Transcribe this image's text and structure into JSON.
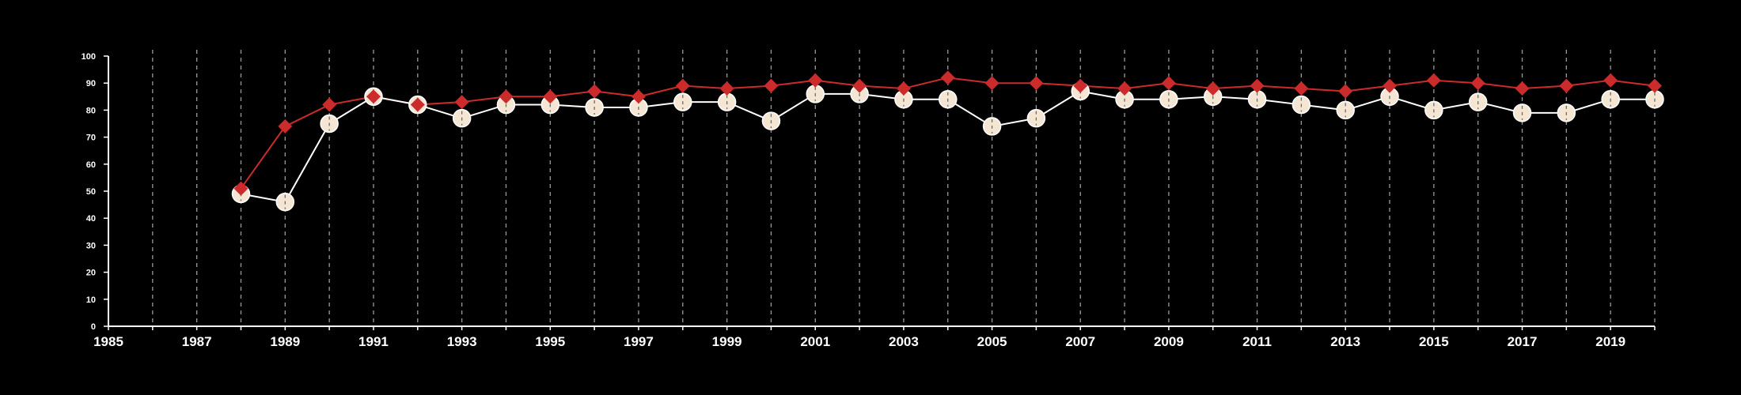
{
  "chart_data": {
    "type": "line",
    "title": "",
    "xlabel": "",
    "ylabel": "",
    "xlim": [
      1985,
      2020
    ],
    "ylim": [
      0,
      100
    ],
    "x_ticks": [
      1985,
      1987,
      1989,
      1991,
      1993,
      1995,
      1997,
      1999,
      2001,
      2003,
      2005,
      2007,
      2009,
      2011,
      2013,
      2015,
      2017,
      2019
    ],
    "y_ticks": [
      0,
      10,
      20,
      30,
      40,
      50,
      60,
      70,
      80,
      90,
      100
    ],
    "vertical_grid": "dashed at every year from 1986 to 2020",
    "legend": "none",
    "x": [
      1988,
      1989,
      1990,
      1991,
      1992,
      1993,
      1994,
      1995,
      1996,
      1997,
      1998,
      1999,
      2000,
      2001,
      2002,
      2003,
      2004,
      2005,
      2006,
      2007,
      2008,
      2009,
      2010,
      2011,
      2012,
      2013,
      2014,
      2015,
      2016,
      2017,
      2018,
      2019,
      2020
    ],
    "series": [
      {
        "marker": "diamond",
        "color": "#cc2b2b",
        "values": [
          51,
          74,
          82,
          85,
          82,
          83,
          85,
          85,
          87,
          85,
          89,
          88,
          89,
          91,
          89,
          88,
          92,
          90,
          90,
          89,
          88,
          90,
          88,
          89,
          88,
          87,
          89,
          91,
          90,
          88,
          89,
          91,
          89
        ]
      },
      {
        "marker": "circle",
        "color": "#f5e6d3",
        "line_color": "#ffffff",
        "values": [
          49,
          46,
          75,
          85,
          82,
          77,
          82,
          82,
          81,
          81,
          83,
          83,
          76,
          86,
          86,
          84,
          84,
          74,
          77,
          87,
          84,
          84,
          85,
          84,
          82,
          80,
          85,
          80,
          83,
          79,
          79,
          84,
          84
        ]
      }
    ]
  }
}
